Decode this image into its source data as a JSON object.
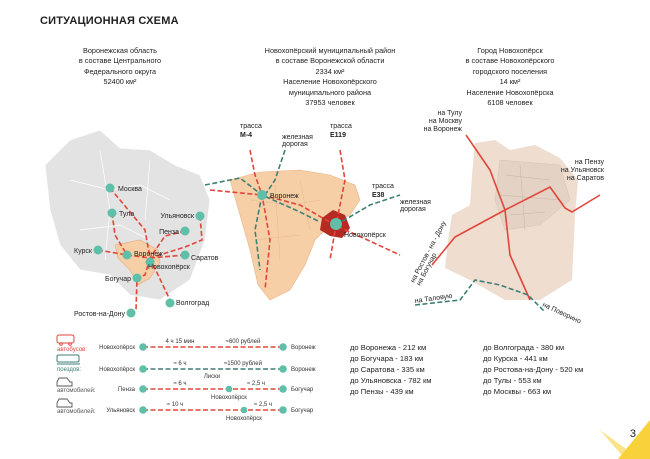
{
  "title": "СИТУАЦИОННАЯ СХЕМА",
  "columns": [
    {
      "lines": [
        "Воронежская область",
        "в составе Центрального",
        "Федерального округа",
        "52400 км²"
      ]
    },
    {
      "lines": [
        "Новохопёрский муниципальный район",
        "в составе Воронежской области",
        "2334 км²",
        "Население Новохопёрского",
        "муниципального района",
        "37953 человек"
      ]
    },
    {
      "lines": [
        "Город Новохопёрск",
        "в составе Новохопёрского",
        "городского поселения",
        "14 км²",
        "Население Новохопёрска",
        "6108 человек"
      ]
    }
  ],
  "map_left": {
    "cities": [
      "Москва",
      "Тула",
      "Ульяновск",
      "Пенза",
      "Курск",
      "Воронеж",
      "Саратов",
      "Новохопёрск",
      "Богучар",
      "Волгоград",
      "Ростов-на-Дону"
    ]
  },
  "map_middle": {
    "labels": [
      "трасса",
      "М-4",
      "железная",
      "дорогая",
      "трасса",
      "Е119",
      "Воронеж",
      "трасса",
      "Е38",
      "железная",
      "дорогая",
      "Новохопёрск"
    ]
  },
  "map_right": {
    "labels": [
      "на Тулу",
      "на Москву",
      "на Воронеж",
      "на Пензу",
      "на Ульяновск",
      "на Саратов",
      "на Ростов - на - Дону",
      "на Богучар",
      "на Таловую",
      "на Поворино"
    ]
  },
  "legend": {
    "rows": [
      {
        "mode": "автобусов:",
        "from": "Новохопёрск",
        "to": "Воронеж",
        "t1": "4 ч 15 мин",
        "t2": "≈600 рублей",
        "via": "",
        "color": "#e0463a",
        "icon": "bus-icon"
      },
      {
        "mode": "поездов:",
        "from": "Новохопёрск",
        "to": "Воронеж",
        "t1": "≈ 6 ч",
        "t2": "≈1500 рублей",
        "via": "Лиски",
        "color": "#3f7f76",
        "icon": "train-icon"
      },
      {
        "mode": "автомобилей:",
        "from": "Пенза",
        "to": "Богучар",
        "t1": "≈ 6 ч",
        "t2": "≈ 2,5 ч",
        "via": "Новохопёрск",
        "color": "#e0463a",
        "icon": "car-icon"
      },
      {
        "mode": "автомобилей:",
        "from": "Ульяновск",
        "to": "Богучар",
        "t1": "≈ 10 ч",
        "t2": "≈ 2,5 ч",
        "via": "Новохопёрск",
        "color": "#e0463a",
        "icon": "car-icon"
      }
    ]
  },
  "distances_left": [
    "до Воронежа - 212 км",
    "до Богучара - 183 км",
    "до Саратова - 335 км",
    "до Ульяновска - 782 км",
    "до Пензы - 439 км"
  ],
  "distances_right": [
    "до Волгограда - 380 км",
    "до Курска - 441 км",
    "до Ростова-на-Дону - 520 км",
    "до Тулы - 553 км",
    "до Москвы - 663 км"
  ],
  "page_number": "3",
  "colors": {
    "road": "#e0463a",
    "rail": "#3f7f76",
    "node": "#5fbfa8",
    "region": "#f6cfa6",
    "area": "#e2e2e2",
    "accent": "#f7d23a"
  }
}
